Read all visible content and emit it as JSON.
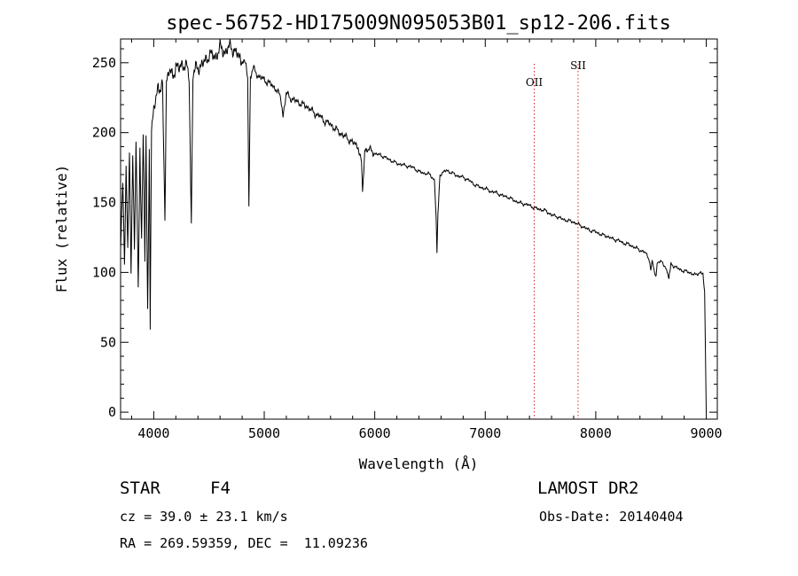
{
  "chart_data": {
    "type": "line",
    "title": "spec-56752-HD175009N095053B01_sp12-206.fits",
    "xlabel": "Wavelength (Å)",
    "ylabel": "Flux (relative)",
    "xlim": [
      3700,
      9100
    ],
    "ylim": [
      -5,
      267
    ],
    "x_ticks": [
      4000,
      5000,
      6000,
      7000,
      8000,
      9000
    ],
    "y_ticks": [
      0,
      50,
      100,
      150,
      200,
      250
    ],
    "grid": false,
    "series": [
      {
        "color": "#000000",
        "points": [
          [
            3700,
            118
          ],
          [
            3720,
            165
          ],
          [
            3735,
            108
          ],
          [
            3750,
            178
          ],
          [
            3765,
            112
          ],
          [
            3780,
            183
          ],
          [
            3795,
            103
          ],
          [
            3810,
            186
          ],
          [
            3825,
            118
          ],
          [
            3840,
            192
          ],
          [
            3860,
            85
          ],
          [
            3875,
            190
          ],
          [
            3890,
            125
          ],
          [
            3905,
            198
          ],
          [
            3920,
            110
          ],
          [
            3930,
            195
          ],
          [
            3945,
            70
          ],
          [
            3960,
            192
          ],
          [
            3968,
            60
          ],
          [
            3980,
            200
          ],
          [
            4000,
            215
          ],
          [
            4020,
            225
          ],
          [
            4040,
            235
          ],
          [
            4060,
            230
          ],
          [
            4080,
            232
          ],
          [
            4101,
            135
          ],
          [
            4115,
            238
          ],
          [
            4140,
            244
          ],
          [
            4170,
            240
          ],
          [
            4200,
            248
          ],
          [
            4230,
            245
          ],
          [
            4260,
            250
          ],
          [
            4300,
            246
          ],
          [
            4320,
            240
          ],
          [
            4340,
            136
          ],
          [
            4355,
            242
          ],
          [
            4380,
            245
          ],
          [
            4420,
            248
          ],
          [
            4460,
            250
          ],
          [
            4500,
            256
          ],
          [
            4550,
            254
          ],
          [
            4600,
            260
          ],
          [
            4650,
            258
          ],
          [
            4700,
            262
          ],
          [
            4750,
            256
          ],
          [
            4800,
            252
          ],
          [
            4835,
            248
          ],
          [
            4850,
            240
          ],
          [
            4861,
            148
          ],
          [
            4875,
            240
          ],
          [
            4900,
            246
          ],
          [
            4950,
            240
          ],
          [
            5000,
            238
          ],
          [
            5050,
            235
          ],
          [
            5100,
            232
          ],
          [
            5150,
            225
          ],
          [
            5170,
            212
          ],
          [
            5200,
            228
          ],
          [
            5250,
            224
          ],
          [
            5300,
            222
          ],
          [
            5350,
            220
          ],
          [
            5400,
            218
          ],
          [
            5450,
            214
          ],
          [
            5500,
            212
          ],
          [
            5550,
            208
          ],
          [
            5600,
            206
          ],
          [
            5650,
            202
          ],
          [
            5700,
            199
          ],
          [
            5750,
            196
          ],
          [
            5800,
            193
          ],
          [
            5850,
            190
          ],
          [
            5880,
            178
          ],
          [
            5890,
            157
          ],
          [
            5896,
            165
          ],
          [
            5910,
            188
          ],
          [
            5950,
            188
          ],
          [
            6000,
            185
          ],
          [
            6050,
            184
          ],
          [
            6100,
            182
          ],
          [
            6150,
            180
          ],
          [
            6200,
            178
          ],
          [
            6250,
            177
          ],
          [
            6300,
            176
          ],
          [
            6350,
            175
          ],
          [
            6400,
            172
          ],
          [
            6450,
            171
          ],
          [
            6500,
            170
          ],
          [
            6540,
            166
          ],
          [
            6555,
            140
          ],
          [
            6563,
            115
          ],
          [
            6572,
            142
          ],
          [
            6590,
            170
          ],
          [
            6650,
            173
          ],
          [
            6700,
            171
          ],
          [
            6750,
            169
          ],
          [
            6800,
            168
          ],
          [
            6850,
            166
          ],
          [
            6900,
            163
          ],
          [
            6950,
            161
          ],
          [
            7000,
            160
          ],
          [
            7050,
            158
          ],
          [
            7100,
            157
          ],
          [
            7150,
            155
          ],
          [
            7200,
            154
          ],
          [
            7250,
            152
          ],
          [
            7300,
            150
          ],
          [
            7350,
            149
          ],
          [
            7400,
            148
          ],
          [
            7450,
            146
          ],
          [
            7500,
            145
          ],
          [
            7550,
            144
          ],
          [
            7600,
            141
          ],
          [
            7650,
            140
          ],
          [
            7700,
            138
          ],
          [
            7750,
            137
          ],
          [
            7800,
            136
          ],
          [
            7850,
            134
          ],
          [
            7900,
            132
          ],
          [
            7950,
            130
          ],
          [
            8000,
            129
          ],
          [
            8050,
            127
          ],
          [
            8100,
            126
          ],
          [
            8150,
            124
          ],
          [
            8200,
            123
          ],
          [
            8250,
            121
          ],
          [
            8300,
            120
          ],
          [
            8350,
            118
          ],
          [
            8400,
            116
          ],
          [
            8450,
            114
          ],
          [
            8480,
            110
          ],
          [
            8498,
            102
          ],
          [
            8510,
            108
          ],
          [
            8542,
            96
          ],
          [
            8560,
            108
          ],
          [
            8600,
            107
          ],
          [
            8630,
            104
          ],
          [
            8662,
            96
          ],
          [
            8680,
            106
          ],
          [
            8720,
            104
          ],
          [
            8760,
            102
          ],
          [
            8800,
            101
          ],
          [
            8850,
            100
          ],
          [
            8900,
            98
          ],
          [
            8940,
            100
          ],
          [
            8970,
            99
          ],
          [
            8985,
            85
          ],
          [
            8995,
            30
          ],
          [
            9000,
            0
          ]
        ]
      }
    ],
    "annotations": [
      {
        "label": "OII",
        "x": 7443
      },
      {
        "label": "SII",
        "x": 7840
      }
    ],
    "line_color": "#d62828"
  },
  "info": {
    "object_class": "STAR",
    "subclass": "F4",
    "survey": "LAMOST DR2",
    "velocity": "cz = 39.0 ± 23.1 km/s",
    "obs_date": "Obs-Date: 20140404",
    "coords": "RA = 269.59359, DEC =  11.09236"
  }
}
